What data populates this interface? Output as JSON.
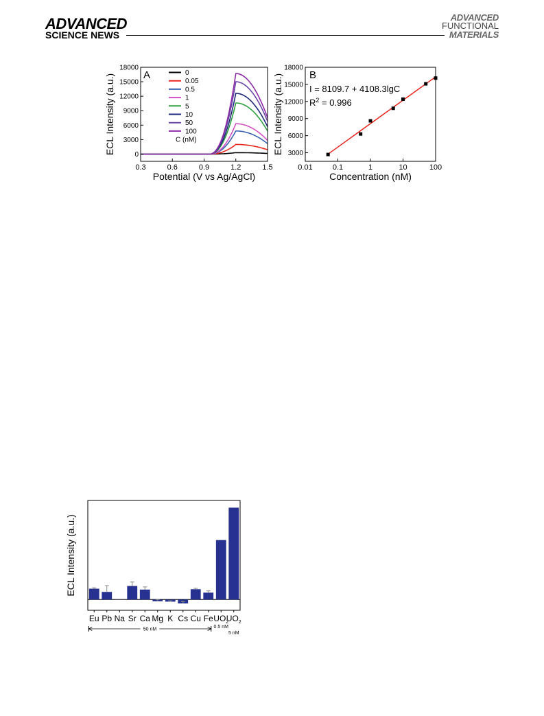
{
  "header": {
    "left_line1": "ADVANCED",
    "left_line2": "SCIENCE NEWS",
    "right_line1": "ADVANCED",
    "right_line2": "FUNCTIONAL",
    "right_line3": "MATERIALS"
  },
  "chart_data": [
    {
      "type": "line",
      "panel": "A",
      "xlabel": "Potential (V vs Ag/AgCl)",
      "ylabel": "ECL Intensity (a.u.)",
      "xlim": [
        0.3,
        1.5
      ],
      "ylim": [
        -1500,
        18000
      ],
      "xticks": [
        "0.3",
        "0.6",
        "0.9",
        "1.2",
        "1.5"
      ],
      "yticks": [
        "0",
        "3000",
        "6000",
        "9000",
        "12000",
        "15000",
        "18000"
      ],
      "legend_title": "C (nM)",
      "legend_position": "top-center",
      "series": [
        {
          "name": "0",
          "color": "#000000",
          "peak": 300
        },
        {
          "name": "0.05",
          "color": "#e8241b",
          "peak": 2000
        },
        {
          "name": "0.5",
          "color": "#3a62b0",
          "peak": 4800
        },
        {
          "name": "1",
          "color": "#d44fc2",
          "peak": 6300
        },
        {
          "name": "5",
          "color": "#2e9e3e",
          "peak": 10600
        },
        {
          "name": "10",
          "color": "#1e2a7a",
          "peak": 12600
        },
        {
          "name": "50",
          "color": "#6a45a8",
          "peak": 15000
        },
        {
          "name": "100",
          "color": "#8d2aa6",
          "peak": 16700
        }
      ],
      "peak_potential": 1.2
    },
    {
      "type": "scatter",
      "panel": "B",
      "xlabel": "Concentration (nM)",
      "ylabel": "ECL Intensity (a.u.)",
      "xscale": "log",
      "xlim": [
        0.01,
        100
      ],
      "ylim": [
        1500,
        18000
      ],
      "xticks": [
        "0.01",
        "0.1",
        "1",
        "10",
        "100"
      ],
      "yticks": [
        "3000",
        "6000",
        "9000",
        "12000",
        "15000",
        "18000"
      ],
      "x": [
        0.05,
        0.5,
        1,
        5,
        10,
        50,
        100
      ],
      "y": [
        2700,
        6300,
        8600,
        10800,
        12400,
        15100,
        16100
      ],
      "fit_color": "#e8241b",
      "equation": "I = 8109.7 + 4108.3lgC",
      "r2_prefix": "R",
      "r2_sup": "2",
      "r2_value": " = 0.996"
    },
    {
      "type": "bar",
      "xlabel": "",
      "ylabel": "ECL Intensity (a.u.)",
      "bar_color": "#27318f",
      "categories": [
        "Eu",
        "Pb",
        "Na",
        "Sr",
        "Ca",
        "Mg",
        "K",
        "Cs",
        "Cu",
        "Fe",
        "UO",
        "UO"
      ],
      "category_subscripts": [
        "",
        "",
        "",
        "",
        "",
        "",
        "",
        "",
        "",
        "",
        "2",
        "2"
      ],
      "values": [
        6,
        4.2,
        0.1,
        7.5,
        5.5,
        -1,
        -1.2,
        -2.2,
        5.7,
        3.8,
        33,
        51
      ],
      "errors": [
        0.5,
        3.5,
        0,
        2.2,
        1.5,
        1,
        0.5,
        1,
        0.5,
        1,
        0,
        0
      ],
      "ylim": [
        -6,
        55
      ],
      "group_labels": [
        "50 nM",
        "0.5 nM",
        "5 nM"
      ]
    }
  ]
}
